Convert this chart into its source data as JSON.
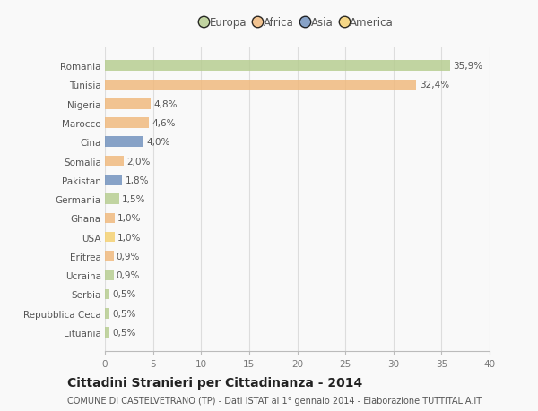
{
  "categories": [
    "Romania",
    "Tunisia",
    "Nigeria",
    "Marocco",
    "Cina",
    "Somalia",
    "Pakistan",
    "Germania",
    "Ghana",
    "USA",
    "Eritrea",
    "Ucraina",
    "Serbia",
    "Repubblica Ceca",
    "Lituania"
  ],
  "values": [
    35.9,
    32.4,
    4.8,
    4.6,
    4.0,
    2.0,
    1.8,
    1.5,
    1.0,
    1.0,
    0.9,
    0.9,
    0.5,
    0.5,
    0.5
  ],
  "labels": [
    "35,9%",
    "32,4%",
    "4,8%",
    "4,6%",
    "4,0%",
    "2,0%",
    "1,8%",
    "1,5%",
    "1,0%",
    "1,0%",
    "0,9%",
    "0,9%",
    "0,5%",
    "0,5%",
    "0,5%"
  ],
  "continents": [
    "Europa",
    "Africa",
    "Africa",
    "Africa",
    "Asia",
    "Africa",
    "Asia",
    "Europa",
    "Africa",
    "America",
    "Africa",
    "Europa",
    "Europa",
    "Europa",
    "Europa"
  ],
  "colors": {
    "Europa": "#b5cc8e",
    "Africa": "#f0b87a",
    "Asia": "#6e8fbc",
    "America": "#f5d06e"
  },
  "title": "Cittadini Stranieri per Cittadinanza - 2014",
  "subtitle": "COMUNE DI CASTELVETRANO (TP) - Dati ISTAT al 1° gennaio 2014 - Elaborazione TUTTITALIA.IT",
  "xlim": [
    0,
    40
  ],
  "xticks": [
    0,
    5,
    10,
    15,
    20,
    25,
    30,
    35,
    40
  ],
  "background_color": "#f9f9f9",
  "grid_color": "#dddddd",
  "bar_height": 0.55,
  "label_fontsize": 7.5,
  "tick_fontsize": 7.5,
  "title_fontsize": 10,
  "subtitle_fontsize": 7,
  "legend_fontsize": 8.5
}
